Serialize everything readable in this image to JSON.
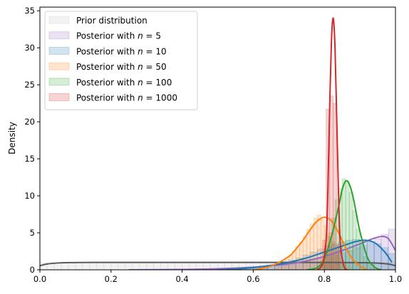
{
  "chart_data": {
    "type": "area",
    "title": "",
    "xlabel": "",
    "ylabel": "Density",
    "xlim": [
      0,
      1
    ],
    "ylim": [
      0,
      35.5
    ],
    "xticks": [
      "0.0",
      "0.2",
      "0.4",
      "0.6",
      "0.8",
      "1.0"
    ],
    "yticks": [
      "0",
      "5",
      "10",
      "15",
      "20",
      "25",
      "30",
      "35"
    ],
    "grid": false,
    "legend_position": "top-left",
    "series": [
      {
        "name": "Prior distribution",
        "legend_prefix": "Prior distribution",
        "legend_n": "",
        "color": "#595959",
        "fill": "#bfbfbf",
        "bins": {
          "start": 0.0,
          "width": 0.02,
          "heights": [
            0.95,
            1.0,
            0.98,
            1.02,
            0.97,
            1.0,
            1.01,
            0.99,
            0.96,
            1.03,
            1.0,
            0.98,
            1.02,
            0.97,
            1.0,
            1.01,
            0.99,
            1.0,
            0.98,
            1.02,
            1.0,
            0.97,
            1.03,
            0.99,
            1.0,
            1.01,
            0.98,
            1.0,
            1.02,
            0.97,
            1.0,
            0.99,
            1.01,
            1.0,
            0.98,
            1.02,
            0.99,
            1.0,
            1.01,
            0.98,
            1.0,
            0.99,
            1.02,
            0.97,
            1.0,
            1.01,
            0.98,
            1.0,
            0.99,
            0.95
          ]
        },
        "kde": {
          "x": [
            0.0,
            0.02,
            0.05,
            0.08,
            0.15,
            0.3,
            0.5,
            0.7,
            0.85,
            0.92,
            0.95,
            0.98,
            1.0
          ],
          "y": [
            0.55,
            0.78,
            0.92,
            0.97,
            1.0,
            1.0,
            1.0,
            1.0,
            0.99,
            0.96,
            0.9,
            0.78,
            0.55
          ]
        }
      },
      {
        "name": "Posterior with n = 5",
        "legend_prefix": "Posterior with ",
        "legend_n": "5",
        "color": "#9467bd",
        "fill": "#9467bd",
        "bins": {
          "start": 0.5,
          "width": 0.02,
          "heights": [
            0.1,
            0.1,
            0.15,
            0.2,
            0.2,
            0.3,
            0.3,
            0.4,
            0.5,
            0.6,
            0.8,
            0.9,
            1.1,
            1.3,
            1.5,
            1.7,
            2.0,
            2.3,
            2.6,
            3.0,
            3.3,
            3.7,
            4.2,
            4.8,
            5.5
          ]
        },
        "kde": {
          "x": [
            0.25,
            0.4,
            0.5,
            0.6,
            0.65,
            0.7,
            0.75,
            0.8,
            0.85,
            0.9,
            0.93,
            0.96,
            0.98,
            1.0
          ],
          "y": [
            0.0,
            0.05,
            0.15,
            0.35,
            0.55,
            0.8,
            1.2,
            1.8,
            2.6,
            3.5,
            4.1,
            4.5,
            4.2,
            2.6
          ]
        }
      },
      {
        "name": "Posterior with n = 10",
        "legend_prefix": "Posterior with ",
        "legend_n": "10",
        "color": "#1f77b4",
        "fill": "#1f77b4",
        "bins": {
          "start": 0.56,
          "width": 0.02,
          "heights": [
            0.1,
            0.15,
            0.3,
            0.5,
            0.6,
            0.8,
            1.1,
            1.3,
            1.6,
            2.0,
            2.4,
            2.8,
            3.2,
            3.5,
            3.8,
            4.0,
            4.1,
            4.0,
            3.8,
            3.5,
            3.0,
            2.2
          ]
        },
        "kde": {
          "x": [
            0.5,
            0.55,
            0.6,
            0.65,
            0.7,
            0.75,
            0.8,
            0.85,
            0.88,
            0.91,
            0.94,
            0.97,
            0.99
          ],
          "y": [
            0.0,
            0.1,
            0.3,
            0.6,
            1.0,
            1.6,
            2.4,
            3.2,
            3.7,
            4.0,
            3.7,
            2.4,
            1.0
          ]
        }
      },
      {
        "name": "Posterior with n = 50",
        "legend_prefix": "Posterior with ",
        "legend_n": "50",
        "color": "#ff7f0e",
        "fill": "#ff7f0e",
        "bins": {
          "start": 0.66,
          "width": 0.01,
          "heights": [
            0.3,
            0.6,
            1.0,
            1.4,
            2.0,
            2.6,
            3.2,
            3.8,
            4.5,
            5.5,
            6.2,
            7.0,
            7.4,
            6.8,
            6.0,
            5.0,
            3.8,
            2.6,
            1.6,
            0.8,
            0.4,
            0.2
          ]
        },
        "kde": {
          "x": [
            0.6,
            0.65,
            0.7,
            0.72,
            0.74,
            0.76,
            0.78,
            0.8,
            0.82,
            0.84,
            0.86,
            0.88,
            0.9,
            0.92
          ],
          "y": [
            0.0,
            0.5,
            1.8,
            2.8,
            4.0,
            5.4,
            6.6,
            7.1,
            6.6,
            5.0,
            3.0,
            1.4,
            0.5,
            0.0
          ]
        }
      },
      {
        "name": "Posterior with n = 100",
        "legend_prefix": "Posterior with ",
        "legend_n": "100",
        "color": "#2ca02c",
        "fill": "#2ca02c",
        "bins": {
          "start": 0.78,
          "width": 0.01,
          "heights": [
            0.5,
            1.2,
            2.5,
            4.5,
            7.0,
            9.5,
            11.0,
            12.3,
            12.0,
            10.5,
            8.0,
            5.5,
            3.5,
            1.8,
            0.8,
            0.3
          ]
        },
        "kde": {
          "x": [
            0.75,
            0.78,
            0.8,
            0.82,
            0.84,
            0.85,
            0.86,
            0.87,
            0.88,
            0.89,
            0.9,
            0.92,
            0.94,
            0.96
          ],
          "y": [
            0.0,
            0.3,
            1.5,
            4.5,
            8.5,
            10.8,
            12.0,
            11.6,
            10.0,
            7.6,
            5.2,
            1.8,
            0.4,
            0.0
          ]
        }
      },
      {
        "name": "Posterior with n = 1000",
        "legend_prefix": "Posterior with ",
        "legend_n": "1000",
        "color": "#d62728",
        "fill": "#d62728",
        "bins": {
          "start": 0.795,
          "width": 0.01,
          "heights": [
            4.0,
            21.7,
            23.5,
            22.5,
            3.3
          ]
        },
        "kde": {
          "x": [
            0.78,
            0.795,
            0.805,
            0.81,
            0.815,
            0.82,
            0.825,
            0.83,
            0.835,
            0.84,
            0.845,
            0.855,
            0.865
          ],
          "y": [
            0.0,
            0.8,
            4.0,
            11.0,
            22.0,
            31.0,
            34.0,
            30.0,
            20.0,
            10.0,
            3.5,
            0.5,
            0.0
          ]
        }
      }
    ]
  }
}
